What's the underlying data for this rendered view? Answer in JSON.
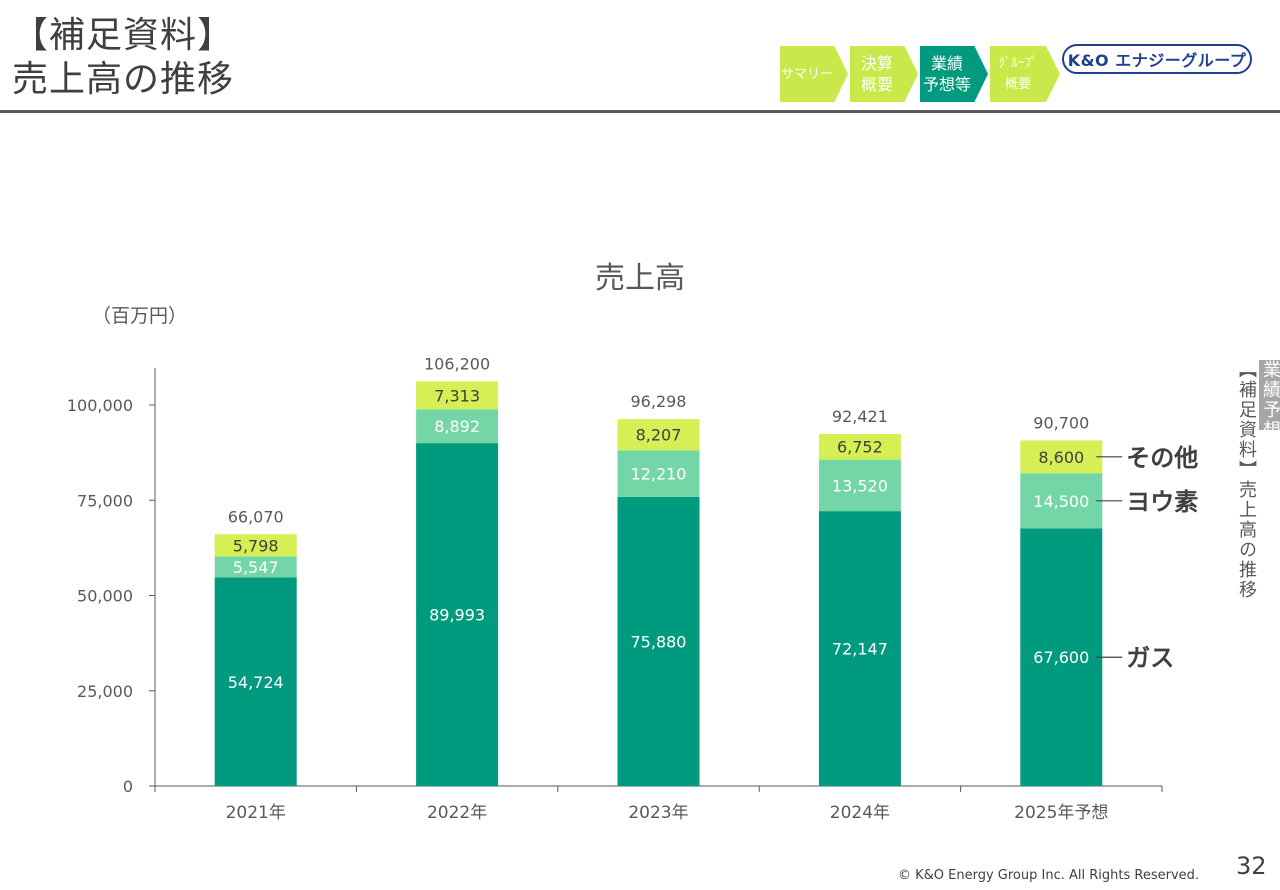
{
  "page": {
    "title_line1": "【補足資料】",
    "title_line2": "売上高の推移",
    "footer": "© K&O Energy Group Inc. All Rights Reserved.",
    "page_number": "32"
  },
  "nav": {
    "steps": [
      {
        "label": "サマリー",
        "color": "#c9e84a",
        "active": false
      },
      {
        "label": "決算\n概要",
        "color": "#c9e84a",
        "active": false
      },
      {
        "label": "業績\n予想等",
        "color": "#009b7f",
        "active": true
      },
      {
        "label": "ｸﾞﾙｰﾌﾟ\n概要",
        "color": "#c9e84a",
        "active": false
      }
    ]
  },
  "logo": {
    "text": "K&O エナジーグループ",
    "color": "#1f3f8f"
  },
  "side_tab": {
    "section": "業績予想等",
    "page": "【補足資料】売上高の推移"
  },
  "chart_data": {
    "type": "bar",
    "stacked": true,
    "title": "売上高",
    "unit_label": "（百万円）",
    "categories": [
      "2021年",
      "2022年",
      "2023年",
      "2024年",
      "2025年予想"
    ],
    "series": [
      {
        "name": "ガス",
        "color": "#009b7f",
        "values": [
          54724,
          89993,
          75880,
          72147,
          67600
        ]
      },
      {
        "name": "ヨウ素",
        "color": "#74d6a6",
        "values": [
          5547,
          8892,
          12210,
          13520,
          14500
        ]
      },
      {
        "name": "その他",
        "color": "#d5ef55",
        "values": [
          5798,
          7313,
          8207,
          6752,
          8600
        ]
      }
    ],
    "totals": [
      66070,
      106200,
      96298,
      92421,
      90700
    ],
    "yticks": [
      0,
      25000,
      50000,
      75000,
      100000
    ],
    "ylim": [
      0,
      110000
    ],
    "grid": false,
    "legend": "right, labels beside last bar"
  }
}
